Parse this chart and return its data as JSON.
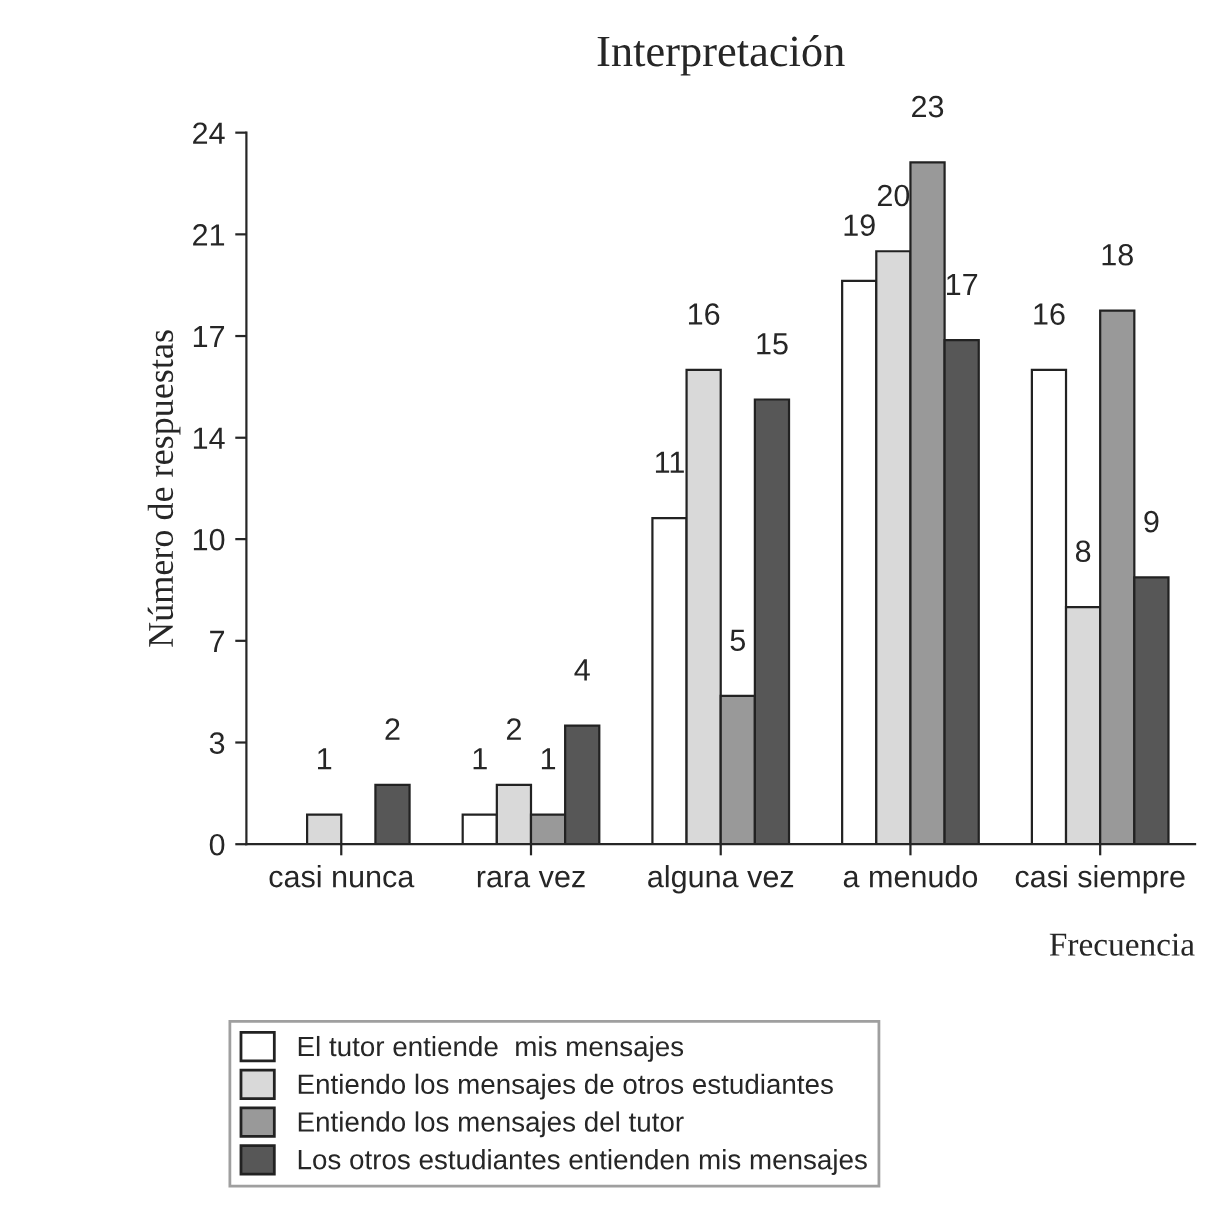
{
  "chart_data": {
    "type": "bar",
    "title": "Interpretación",
    "xlabel": "Frecuencia",
    "ylabel": "Número de respuestas",
    "categories": [
      "casi nunca",
      "rara vez",
      "alguna vez",
      "a menudo",
      "casi siempre"
    ],
    "series": [
      {
        "name": "El tutor entiende  mis mensajes",
        "color": "#ffffff",
        "values": [
          0,
          1,
          11,
          19,
          16
        ],
        "value_labels": [
          null,
          "1",
          "11",
          "19",
          "16"
        ]
      },
      {
        "name": "Entiendo los mensajes de otros estudiantes",
        "color": "#d9d9d9",
        "values": [
          1,
          2,
          16,
          20,
          8
        ],
        "value_labels": [
          "1",
          "2",
          "16",
          "20",
          "8"
        ]
      },
      {
        "name": "Entiendo los mensajes del tutor",
        "color": "#999999",
        "values": [
          0,
          1,
          5,
          23,
          18
        ],
        "value_labels": [
          null,
          "1",
          "5",
          "23",
          "18"
        ]
      },
      {
        "name": "Los otros estudiantes entienden mis mensajes",
        "color": "#575757",
        "values": [
          2,
          4,
          15,
          17,
          9
        ],
        "value_labels": [
          "2",
          "4",
          "15",
          "17",
          "9"
        ]
      }
    ],
    "ylim": [
      0,
      24
    ],
    "yticks": [
      0,
      {
        "value": 3.43,
        "label": "3"
      },
      {
        "value": 6.86,
        "label": "7"
      },
      {
        "value": 10.29,
        "label": "10"
      },
      {
        "value": 13.71,
        "label": "14"
      },
      {
        "value": 17.14,
        "label": "17"
      },
      {
        "value": 20.57,
        "label": "21"
      },
      24
    ],
    "grid": false,
    "legend": "bottom"
  }
}
